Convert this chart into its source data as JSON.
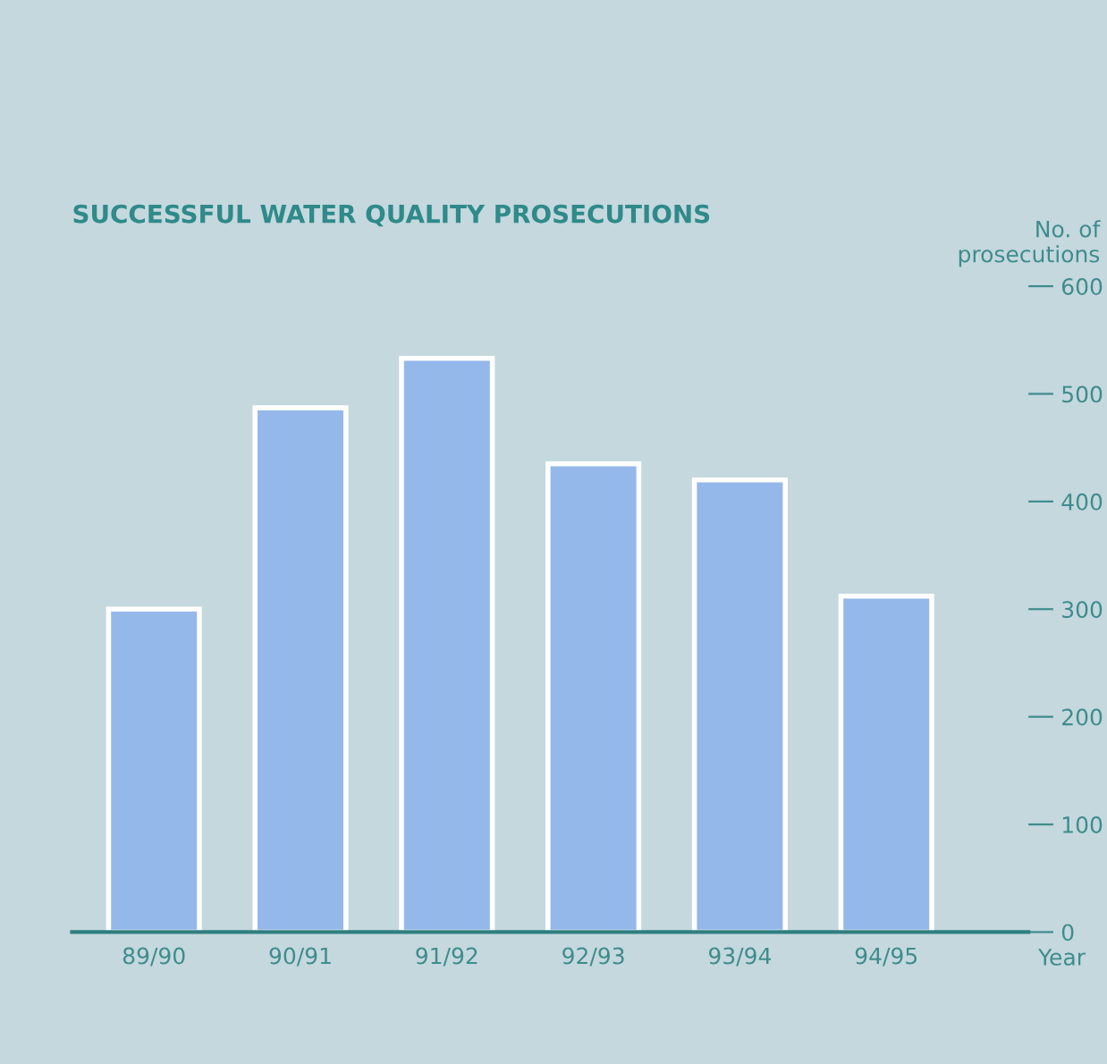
{
  "chart_data": {
    "type": "bar",
    "title": "SUCCESSFUL WATER QUALITY PROSECUTIONS",
    "xlabel": "Year",
    "ylabel": "No. of\nprosecutions",
    "categories": [
      "89/90",
      "90/91",
      "91/92",
      "92/93",
      "93/94",
      "94/95"
    ],
    "values": [
      300,
      487,
      533,
      435,
      420,
      312
    ],
    "color": "#94b8ea",
    "ylim": [
      0,
      600
    ],
    "yticks": [
      0,
      100,
      200,
      300,
      400,
      500,
      600
    ],
    "grid": false,
    "legend": false
  }
}
